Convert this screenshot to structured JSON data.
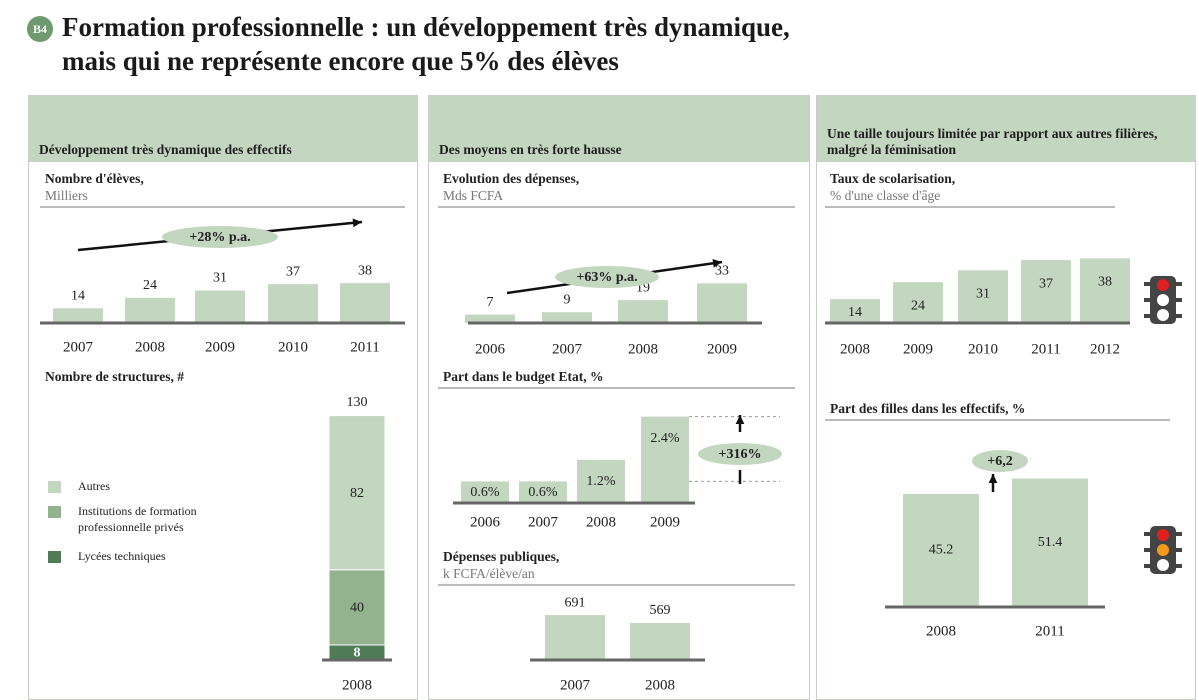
{
  "header": {
    "badge": "B4",
    "title_lines": [
      "Formation professionnelle : un développement très dynamique,",
      "mais qui ne représente encore que 5% des élèves"
    ]
  },
  "panels": [
    "Développement très dynamique des effectifs",
    "Des moyens en très forte hausse",
    "Une taille toujours limitée par rapport aux autres filières, malgré la féminisation"
  ],
  "chart_data": [
    {
      "type": "bar",
      "title": "Nombre d'élèves,",
      "unit": "Milliers",
      "categories": [
        "2007",
        "2008",
        "2009",
        "2010",
        "2011"
      ],
      "values": [
        14,
        24,
        31,
        37,
        38
      ],
      "color": "#c3d6bf",
      "annotation": "+28% p.a."
    },
    {
      "type": "stacked_bar",
      "title": "Nombre de structures, #",
      "categories": [
        "2008"
      ],
      "series": [
        {
          "name": "Lycées techniques",
          "color": "#4f7b57",
          "values": [
            8
          ]
        },
        {
          "name": "Institutions de formation professionnelle privés",
          "color": "#93b38e",
          "values": [
            40
          ]
        },
        {
          "name": "Autres",
          "color": "#c3d6bf",
          "values": [
            82
          ]
        }
      ],
      "totals": [
        130
      ]
    },
    {
      "type": "bar",
      "title": "Evolution des dépenses,",
      "unit": "Mds FCFA",
      "categories": [
        "2006",
        "2007",
        "2008",
        "2009"
      ],
      "values": [
        7,
        9,
        19,
        33
      ],
      "color": "#c3d6bf",
      "annotation": "+63% p.a."
    },
    {
      "type": "bar",
      "title": "Part dans le budget Etat, %",
      "categories": [
        "2006",
        "2007",
        "2008",
        "2009"
      ],
      "values": [
        0.6,
        0.6,
        1.2,
        2.4
      ],
      "value_labels": [
        "0.6%",
        "0.6%",
        "1.2%",
        "2.4%"
      ],
      "color": "#c3d6bf",
      "annotation": "+316%"
    },
    {
      "type": "bar",
      "title": "Dépenses publiques,",
      "unit": "k FCFA/élève/an",
      "categories": [
        "2007",
        "2008"
      ],
      "values": [
        691,
        569
      ],
      "color": "#c3d6bf"
    },
    {
      "type": "bar",
      "title": "Taux de scolarisation,",
      "unit": "% d'une classe d'âge",
      "categories": [
        "2008",
        "2009",
        "2010",
        "2011",
        "2012"
      ],
      "values": [
        14,
        24,
        31,
        37,
        38
      ],
      "color": "#c3d6bf"
    },
    {
      "type": "bar",
      "title": "Part des filles dans les effectifs, %",
      "categories": [
        "2008",
        "2011"
      ],
      "values": [
        45.2,
        51.4
      ],
      "color": "#c3d6bf",
      "annotation": "+6,2"
    }
  ]
}
